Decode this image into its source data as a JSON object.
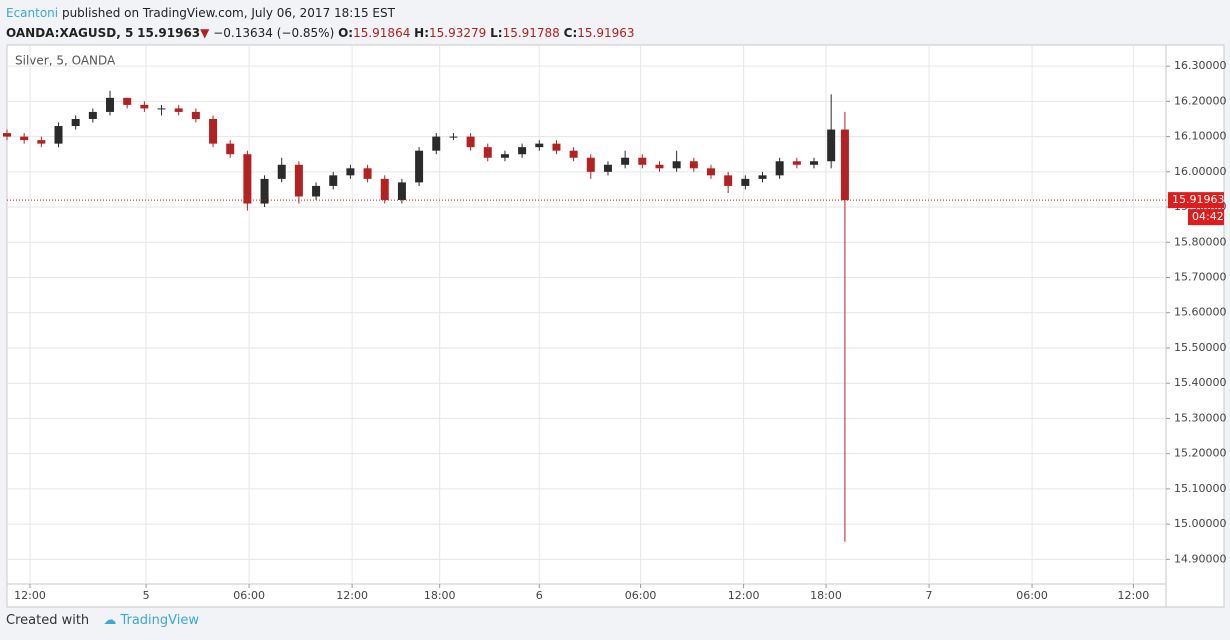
{
  "header": {
    "author": "Ecantoni",
    "published": "published on TradingView.com, July 06, 2017 18:15 EST",
    "symbol": "OANDA:XAGUSD, 5",
    "last": "15.91963",
    "arrow": "▼",
    "change": "−0.13634 (−0.85%)",
    "o_label": "O:",
    "o": "15.91864",
    "h_label": "H:",
    "h": "15.93279",
    "l_label": "L:",
    "l": "15.91788",
    "c_label": "C:",
    "c": "15.91963"
  },
  "chart_data": {
    "type": "candlestick",
    "legend": "Silver, 5, OANDA",
    "x": [
      0,
      1,
      2,
      3,
      4,
      5,
      6,
      7,
      8,
      9,
      10,
      11,
      12,
      13,
      14,
      15,
      16,
      17,
      18,
      19,
      20,
      21,
      22,
      23,
      24,
      25,
      26,
      27,
      28,
      29,
      30,
      31,
      32,
      33,
      34,
      35,
      36,
      37,
      38,
      39,
      40,
      41,
      42,
      43,
      44,
      45,
      46,
      47,
      48,
      48.8
    ],
    "open": [
      16.11,
      16.1,
      16.09,
      16.08,
      16.13,
      16.15,
      16.17,
      16.21,
      16.19,
      16.18,
      16.18,
      16.17,
      16.15,
      16.08,
      16.05,
      15.91,
      15.98,
      16.02,
      15.93,
      15.96,
      15.99,
      16.01,
      15.98,
      15.92,
      15.97,
      16.06,
      16.1,
      16.1,
      16.07,
      16.04,
      16.05,
      16.07,
      16.08,
      16.06,
      16.04,
      16.0,
      16.02,
      16.04,
      16.02,
      16.01,
      16.03,
      16.01,
      15.99,
      15.96,
      15.98,
      15.99,
      16.03,
      16.02,
      16.03,
      16.12
    ],
    "high": [
      16.12,
      16.11,
      16.1,
      16.14,
      16.16,
      16.18,
      16.23,
      16.21,
      16.2,
      16.19,
      16.19,
      16.18,
      16.16,
      16.09,
      16.06,
      15.99,
      16.04,
      16.03,
      15.97,
      16.0,
      16.02,
      16.02,
      15.99,
      15.98,
      16.07,
      16.11,
      16.11,
      16.11,
      16.08,
      16.06,
      16.08,
      16.09,
      16.09,
      16.07,
      16.05,
      16.03,
      16.06,
      16.05,
      16.03,
      16.06,
      16.04,
      16.02,
      16.0,
      15.99,
      16.0,
      16.04,
      16.04,
      16.04,
      16.22,
      16.17
    ],
    "low": [
      16.09,
      16.08,
      16.07,
      16.07,
      16.12,
      16.14,
      16.16,
      16.18,
      16.17,
      16.16,
      16.16,
      16.14,
      16.07,
      16.04,
      15.89,
      15.9,
      15.97,
      15.91,
      15.92,
      15.95,
      15.98,
      15.97,
      15.91,
      15.91,
      15.96,
      16.05,
      16.09,
      16.06,
      16.03,
      16.03,
      16.04,
      16.06,
      16.05,
      16.03,
      15.98,
      15.99,
      16.01,
      16.01,
      16.0,
      16.0,
      16.0,
      15.98,
      15.94,
      15.95,
      15.97,
      15.98,
      16.01,
      16.01,
      16.01,
      14.95
    ],
    "close": [
      16.1,
      16.09,
      16.08,
      16.13,
      16.15,
      16.17,
      16.21,
      16.19,
      16.18,
      16.18,
      16.17,
      16.15,
      16.08,
      16.05,
      15.91,
      15.98,
      16.02,
      15.93,
      15.96,
      15.99,
      16.01,
      15.98,
      15.92,
      15.97,
      16.06,
      16.1,
      16.1,
      16.07,
      16.04,
      16.05,
      16.07,
      16.08,
      16.06,
      16.04,
      16.0,
      16.02,
      16.04,
      16.02,
      16.01,
      16.03,
      16.01,
      15.99,
      15.96,
      15.98,
      15.99,
      16.03,
      16.02,
      16.03,
      16.12,
      15.91963
    ],
    "up_color": "#2b2b2b",
    "down_color": "#b22222",
    "last_price": 15.91963,
    "countdown": "04:42",
    "last_color": "#e01b1b",
    "xlim": [
      0,
      67.5
    ],
    "xticks": [
      {
        "value": 1.34,
        "label": "12:00"
      },
      {
        "value": 8.1,
        "label": "5"
      },
      {
        "value": 14.1,
        "label": "06:00"
      },
      {
        "value": 20.1,
        "label": "12:00"
      },
      {
        "value": 25.2,
        "label": "18:00"
      },
      {
        "value": 31.0,
        "label": "6"
      },
      {
        "value": 36.9,
        "label": "06:00"
      },
      {
        "value": 42.9,
        "label": "12:00"
      },
      {
        "value": 47.7,
        "label": "18:00"
      },
      {
        "value": 53.7,
        "label": "7"
      },
      {
        "value": 59.7,
        "label": "06:00"
      },
      {
        "value": 65.6,
        "label": "12:00"
      }
    ],
    "ylim": [
      14.83,
      16.36
    ],
    "yticks": [
      {
        "value": 16.3,
        "label": "16.30000"
      },
      {
        "value": 16.2,
        "label": "16.20000"
      },
      {
        "value": 16.1,
        "label": "16.10000"
      },
      {
        "value": 16.0,
        "label": "16.00000"
      },
      {
        "value": 15.9,
        "label": "15.90000"
      },
      {
        "value": 15.8,
        "label": "15.80000"
      },
      {
        "value": 15.7,
        "label": "15.70000"
      },
      {
        "value": 15.6,
        "label": "15.60000"
      },
      {
        "value": 15.5,
        "label": "15.50000"
      },
      {
        "value": 15.4,
        "label": "15.40000"
      },
      {
        "value": 15.3,
        "label": "15.30000"
      },
      {
        "value": 15.2,
        "label": "15.20000"
      },
      {
        "value": 15.1,
        "label": "15.10000"
      },
      {
        "value": 15.0,
        "label": "15.00000"
      },
      {
        "value": 14.9,
        "label": "14.90000"
      }
    ],
    "grid": true
  },
  "footer": {
    "created": "Created with",
    "brand": "TradingView"
  }
}
